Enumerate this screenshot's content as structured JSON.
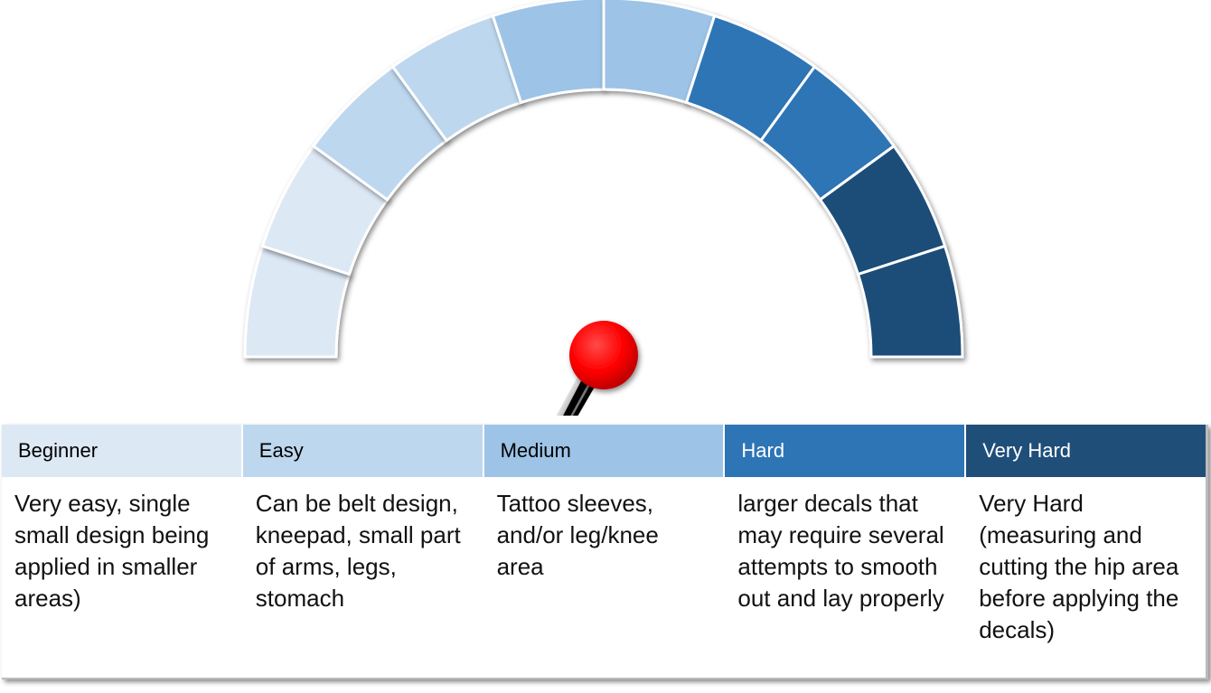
{
  "gauge": {
    "segment_colors": [
      "#dde8f5",
      "#dde8f5",
      "#bdd7ee",
      "#bdd7ee",
      "#9dc3e6",
      "#9dc3e6",
      "#2e75b6",
      "#2e75b6",
      "#1f4e79",
      "#1f4e79"
    ],
    "needle_value_fraction": 0.34,
    "needle_color": "#000000",
    "knob_color": "#ff0000"
  },
  "levels": [
    {
      "name": "Beginner",
      "color": "#dde8f5",
      "text_color": "#000000",
      "description": "Very easy, single small design being applied in smaller areas)"
    },
    {
      "name": "Easy",
      "color": "#bdd7ee",
      "text_color": "#000000",
      "description": "Can be belt design, kneepad, small part of arms, legs, stomach"
    },
    {
      "name": "Medium",
      "color": "#9dc3e6",
      "text_color": "#000000",
      "description": "Tattoo sleeves, and/or leg/knee area"
    },
    {
      "name": "Hard",
      "color": "#2e75b6",
      "text_color": "#ffffff",
      "description": "larger decals that may require several attempts to smooth out and lay properly"
    },
    {
      "name": "Very Hard",
      "color": "#1f4e79",
      "text_color": "#ffffff",
      "description": "Very Hard (measuring and cutting the hip area before applying the decals)"
    }
  ]
}
